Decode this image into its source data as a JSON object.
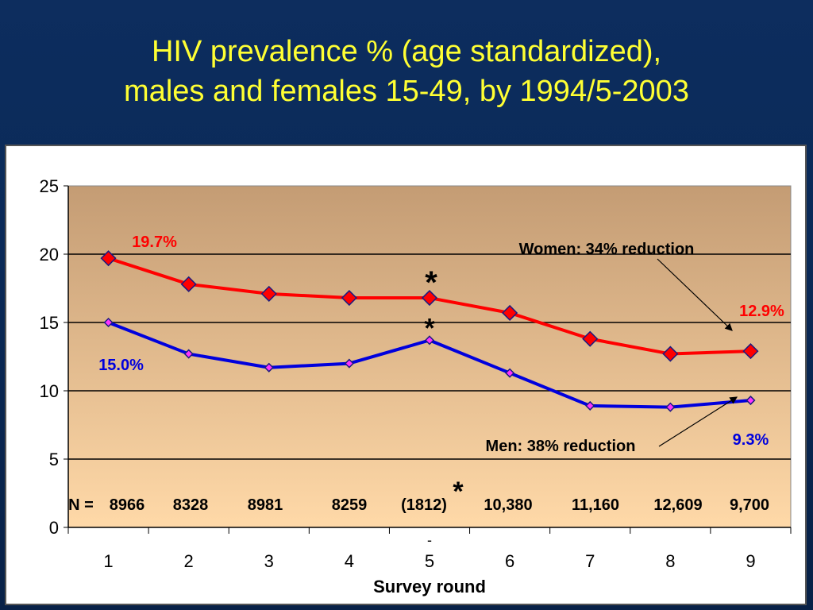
{
  "title": {
    "line1": "HIV prevalence % (age standardized),",
    "line2": "males and females 15-49, by 1994/5-2003"
  },
  "colors": {
    "women": "#ff0000",
    "men": "#0000dd",
    "men_marker": "#ff33ff",
    "title": "#ffff33",
    "plot_top": "#c49c74",
    "plot_bottom": "#ffd9a8"
  },
  "chart_data": {
    "type": "line",
    "x": [
      1,
      2,
      3,
      4,
      5,
      6,
      7,
      8,
      9
    ],
    "categories": [
      "1",
      "2",
      "3",
      "4",
      "5",
      "6",
      "7",
      "8",
      "9"
    ],
    "series": [
      {
        "values": [
          19.7,
          17.8,
          17.1,
          16.8,
          16.8,
          15.7,
          13.8,
          12.7,
          12.9
        ]
      },
      {
        "values": [
          15.0,
          12.7,
          11.7,
          12.0,
          13.7,
          11.3,
          8.9,
          8.8,
          9.3
        ]
      }
    ],
    "xlabel": "Survey round",
    "ylabel": "",
    "ylim": [
      0,
      25
    ],
    "yticks": [
      "0",
      "5",
      "10",
      "15",
      "20",
      "25"
    ],
    "grid": true,
    "annotations": {
      "women_start": "19.7%",
      "women_end": "12.9%",
      "men_start": "15.0%",
      "men_end": "9.3%",
      "women_reduction": "Women: 34% reduction",
      "men_reduction": "Men: 38% reduction",
      "star": "*",
      "dash": "-"
    },
    "sample_sizes": {
      "label": "N =",
      "values": [
        "8966",
        "8328",
        "8981",
        "8259",
        "(1812)",
        "10,380",
        "11,160",
        "12,609",
        "9,700"
      ]
    }
  }
}
